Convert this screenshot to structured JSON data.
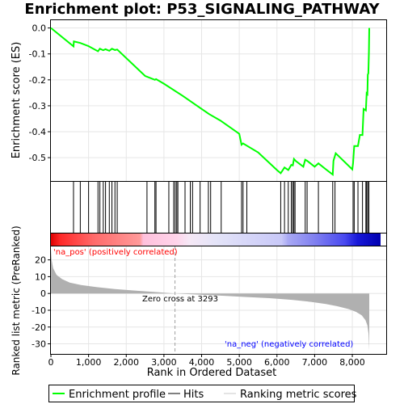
{
  "title": "Enrichment plot: P53_SIGNALING_PATHWAY",
  "colors": {
    "es_line": "#00ff00",
    "hit": "#000000",
    "metric_fill": "#b0b0b0",
    "pos_label": "#ff0000",
    "neg_label": "#0000ff"
  },
  "chart_data": [
    {
      "type": "line",
      "panel": "enrichment-profile",
      "ylabel": "Enrichment score (ES)",
      "ylim": [
        -0.59,
        0.03
      ],
      "yticks": [
        0.0,
        -0.1,
        -0.2,
        -0.3,
        -0.4,
        -0.5
      ],
      "ytick_labels": [
        "0.0",
        "-0.1",
        "-0.2",
        "-0.3",
        "-0.4",
        "-0.5"
      ],
      "xlim": [
        0,
        8900
      ],
      "x": [
        0,
        600,
        610,
        780,
        1000,
        1250,
        1300,
        1390,
        1450,
        1550,
        1620,
        1700,
        1760,
        2500,
        2760,
        2790,
        3000,
        3500,
        4000,
        4200,
        4500,
        5000,
        5060,
        5100,
        5200,
        5500,
        6000,
        6100,
        6200,
        6300,
        6380,
        6420,
        6450,
        6500,
        6700,
        6750,
        6800,
        7000,
        7100,
        7300,
        7480,
        7500,
        7560,
        8000,
        8020,
        8050,
        8150,
        8200,
        8270,
        8300,
        8360,
        8380,
        8400,
        8410,
        8425,
        8440,
        8450
      ],
      "y": [
        0.0,
        -0.071,
        -0.052,
        -0.058,
        -0.07,
        -0.09,
        -0.08,
        -0.086,
        -0.082,
        -0.088,
        -0.08,
        -0.085,
        -0.083,
        -0.185,
        -0.2,
        -0.197,
        -0.215,
        -0.262,
        -0.312,
        -0.332,
        -0.357,
        -0.408,
        -0.45,
        -0.445,
        -0.454,
        -0.48,
        -0.548,
        -0.56,
        -0.538,
        -0.548,
        -0.528,
        -0.53,
        -0.505,
        -0.513,
        -0.535,
        -0.508,
        -0.512,
        -0.535,
        -0.522,
        -0.545,
        -0.565,
        -0.512,
        -0.483,
        -0.545,
        -0.52,
        -0.455,
        -0.455,
        -0.412,
        -0.413,
        -0.312,
        -0.318,
        -0.252,
        -0.255,
        -0.18,
        -0.175,
        -0.09,
        0.0
      ]
    },
    {
      "type": "scatter",
      "panel": "hits",
      "hits": [
        600,
        780,
        1000,
        1250,
        1300,
        1390,
        1450,
        1550,
        1620,
        1700,
        1760,
        2550,
        2760,
        2790,
        3130,
        3260,
        3300,
        3340,
        3370,
        3560,
        3700,
        3760,
        3960,
        4180,
        4240,
        4520,
        5060,
        5100,
        5200,
        6100,
        6200,
        6300,
        6380,
        6420,
        6450,
        6480,
        6750,
        6800,
        7100,
        7480,
        7540,
        8020,
        8050,
        8150,
        8270,
        8360,
        8380,
        8410,
        8440
      ]
    },
    {
      "type": "area",
      "panel": "ranked-list-metric",
      "ylabel": "Ranked list metric (PreRanked)",
      "xlabel": "Rank in Ordered Dataset",
      "ylim": [
        -36,
        28
      ],
      "yticks": [
        20,
        10,
        0,
        -10,
        -20,
        -30
      ],
      "ytick_labels": [
        "20",
        "10",
        "0",
        "-10",
        "-20",
        "-30"
      ],
      "xlim": [
        0,
        8900
      ],
      "xticks": [
        0,
        1000,
        2000,
        3000,
        4000,
        5000,
        6000,
        7000,
        8000
      ],
      "xtick_labels": [
        "0",
        "1,000",
        "2,000",
        "3,000",
        "4,000",
        "5,000",
        "6,000",
        "7,000",
        "8,000"
      ],
      "x": [
        0,
        20,
        60,
        150,
        300,
        500,
        800,
        1200,
        1700,
        2300,
        2800,
        3293,
        3800,
        4500,
        5200,
        5800,
        6400,
        6900,
        7300,
        7600,
        7900,
        8100,
        8250,
        8350,
        8400,
        8430,
        8450
      ],
      "y": [
        27,
        20,
        15,
        11,
        8.5,
        6.5,
        5,
        3.8,
        2.6,
        1.6,
        0.8,
        0,
        -0.6,
        -1.3,
        -2.1,
        -2.8,
        -3.8,
        -5,
        -6.3,
        -7.6,
        -9.3,
        -11,
        -13,
        -16,
        -19,
        -24,
        -34
      ],
      "zero_cross_label": "Zero cross at 3293",
      "pos_label": "'na_pos' (positively correlated)",
      "neg_label": "'na_neg' (negatively correlated)"
    }
  ],
  "legend": {
    "items": [
      {
        "label": "Enrichment profile"
      },
      {
        "label": "Hits"
      },
      {
        "label": "Ranking metric scores"
      }
    ]
  }
}
